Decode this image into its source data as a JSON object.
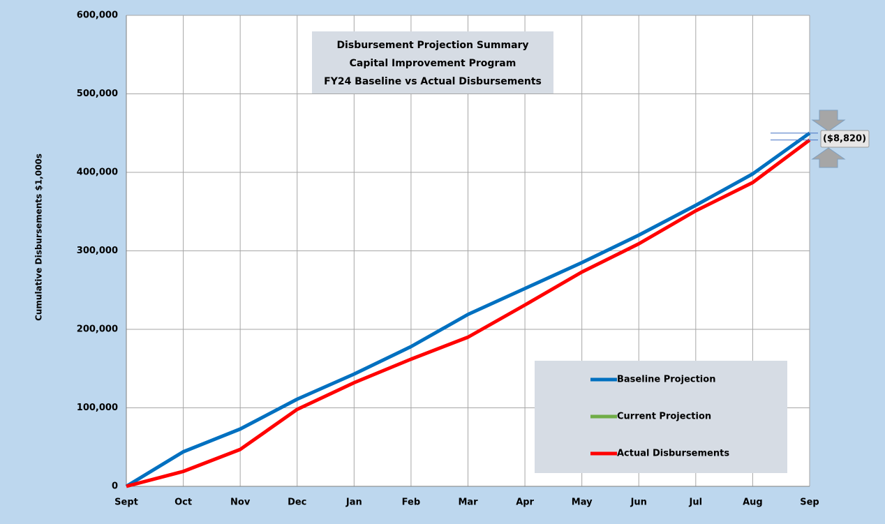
{
  "chart_data": {
    "type": "line",
    "title": [
      "Disbursement Projection Summary",
      "Capital Improvement Program",
      "FY24 Baseline vs Actual Disbursements"
    ],
    "y_label": "Cumulative Disbursements $1,000s",
    "categories": [
      "Sept",
      "Oct",
      "Nov",
      "Dec",
      "Jan",
      "Feb",
      "Mar",
      "Apr",
      "May",
      "Jun",
      "Jul",
      "Aug",
      "Sep"
    ],
    "series": [
      {
        "name": "Baseline Projection",
        "color": "#0070c0",
        "values": [
          0,
          44000,
          73000,
          111000,
          143000,
          178000,
          219000,
          252000,
          285000,
          320000,
          358000,
          398000,
          450000
        ]
      },
      {
        "name": "Current Projection",
        "color": "#70ad47",
        "values": [
          null,
          null,
          null,
          null,
          null,
          null,
          null,
          null,
          null,
          null,
          null,
          null,
          null
        ]
      },
      {
        "name": "Actual Disbursements",
        "color": "#ff0000",
        "values": [
          0,
          19000,
          47000,
          98000,
          132000,
          162000,
          190000,
          231000,
          273000,
          309000,
          351000,
          387000,
          441180
        ]
      }
    ],
    "annotation": "($8,820)",
    "ylim": [
      0,
      600000
    ],
    "yticks": [
      0,
      {
        "value": 100000,
        "label": "100,000"
      },
      {
        "value": 200000,
        "label": "200,000"
      },
      {
        "value": 300000,
        "label": "300,000"
      },
      {
        "value": 400000,
        "label": "400,000"
      },
      {
        "value": 500000,
        "label": "500,000"
      },
      {
        "value": 600000,
        "label": "600,000"
      }
    ],
    "grid": true
  }
}
